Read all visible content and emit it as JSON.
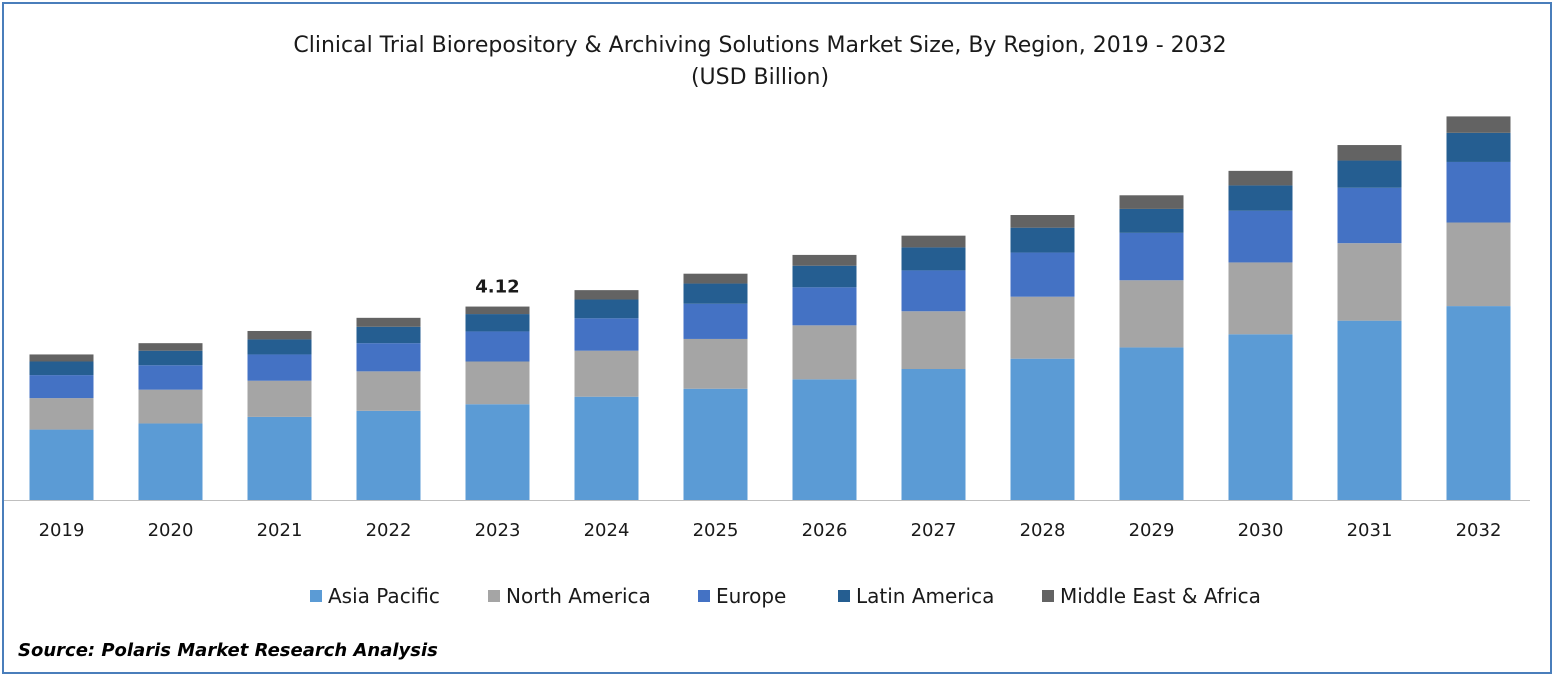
{
  "chart_data": {
    "type": "stacked-bar",
    "title": "Clinical Trial Biorepository & Archiving Solutions Market Size, By Region, 2019 - 2032",
    "subtitle": "(USD Billion)",
    "categories": [
      "2019",
      "2020",
      "2021",
      "2022",
      "2023",
      "2024",
      "2025",
      "2026",
      "2027",
      "2028",
      "2029",
      "2030",
      "2031",
      "2032"
    ],
    "series": [
      {
        "name": "Asia Pacific",
        "color": "#5b9bd5",
        "values": [
          1.5,
          1.63,
          1.77,
          1.9,
          2.04,
          2.2,
          2.37,
          2.57,
          2.79,
          3.01,
          3.25,
          3.53,
          3.82,
          4.13
        ]
      },
      {
        "name": "North America",
        "color": "#a5a5a5",
        "values": [
          0.67,
          0.72,
          0.77,
          0.84,
          0.91,
          0.98,
          1.06,
          1.15,
          1.23,
          1.32,
          1.43,
          1.53,
          1.65,
          1.78
        ]
      },
      {
        "name": "Europe",
        "color": "#4472c4",
        "values": [
          0.49,
          0.52,
          0.56,
          0.6,
          0.64,
          0.69,
          0.75,
          0.81,
          0.87,
          0.94,
          1.01,
          1.1,
          1.18,
          1.29
        ]
      },
      {
        "name": "Latin America",
        "color": "#255e91",
        "values": [
          0.29,
          0.31,
          0.32,
          0.35,
          0.37,
          0.4,
          0.43,
          0.46,
          0.49,
          0.53,
          0.51,
          0.54,
          0.58,
          0.62
        ]
      },
      {
        "name": "Middle East & Africa",
        "color": "#636363",
        "values": [
          0.15,
          0.16,
          0.18,
          0.19,
          0.16,
          0.2,
          0.21,
          0.23,
          0.25,
          0.27,
          0.29,
          0.31,
          0.33,
          0.35
        ]
      }
    ],
    "annotations": [
      {
        "category": "2023",
        "text": "4.12"
      }
    ],
    "ylim": [
      0,
      8.2
    ],
    "legend": "bottom",
    "grid": false
  },
  "source": "Source: Polaris Market Research Analysis"
}
